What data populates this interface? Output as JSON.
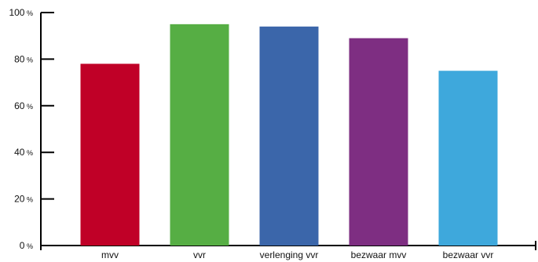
{
  "chart_data": {
    "type": "bar",
    "title": "",
    "xlabel": "",
    "ylabel": "",
    "categories": [
      "mvv",
      "vvr",
      "verlenging vvr",
      "bezwaar mvv",
      "bezwaar vvr"
    ],
    "values": [
      78,
      95,
      94,
      89,
      75
    ],
    "colors": [
      "#c00027",
      "#56ae44",
      "#3b66aa",
      "#7e2e82",
      "#3ea8dc"
    ],
    "ylim": [
      0,
      100
    ],
    "yticks": [
      0,
      20,
      40,
      60,
      80,
      100
    ],
    "ytick_unit": "%",
    "grid": false,
    "legend": "none"
  }
}
